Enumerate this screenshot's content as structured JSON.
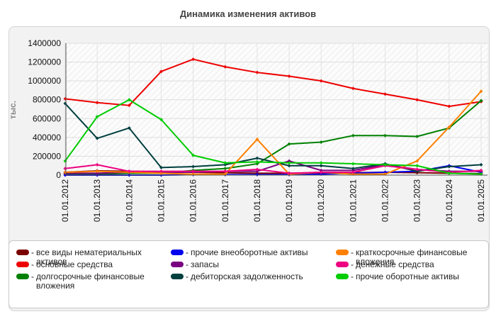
{
  "chart_data": {
    "type": "line",
    "title": "Динамика изменения активов",
    "ylabel": "тыс.",
    "xlabel": "",
    "ylim": [
      0,
      1400000
    ],
    "y_ticks": [
      "0",
      "200000",
      "400000",
      "600000",
      "800000",
      "1000000",
      "1200000",
      "1400000"
    ],
    "y_tick_values": [
      0,
      200000,
      400000,
      600000,
      800000,
      1000000,
      1200000,
      1400000
    ],
    "categories": [
      "01.01.2012",
      "01.01.2013",
      "01.01.2014",
      "01.01.2015",
      "01.01.2016",
      "01.01.2017",
      "01.01.2018",
      "01.01.2019",
      "01.01.2020",
      "01.01.2021",
      "01.01.2022",
      "01.01.2023",
      "01.01.2024",
      "01.01.2025"
    ],
    "grid": true,
    "legend_position": "bottom",
    "series": [
      {
        "name": "все виды нематериальных активов",
        "color": "#7a0000",
        "values": [
          30000,
          45000,
          40000,
          35000,
          30000,
          25000,
          20000,
          20000,
          20000,
          25000,
          30000,
          25000,
          20000,
          15000
        ]
      },
      {
        "name": "основные средства",
        "color": "#ee0000",
        "values": [
          810000,
          770000,
          740000,
          1100000,
          1230000,
          1150000,
          1090000,
          1050000,
          1000000,
          920000,
          860000,
          800000,
          730000,
          780000
        ]
      },
      {
        "name": "долгосрочные финансовые вложения",
        "color": "#008000",
        "values": [
          10000,
          10000,
          20000,
          20000,
          50000,
          70000,
          120000,
          330000,
          350000,
          420000,
          420000,
          410000,
          500000,
          790000
        ]
      },
      {
        "name": "прочие внеоборотные активы",
        "color": "#0000ee",
        "values": [
          0,
          0,
          0,
          0,
          5000,
          5000,
          5000,
          5000,
          10000,
          20000,
          30000,
          40000,
          100000,
          30000
        ]
      },
      {
        "name": "запасы",
        "color": "#7a0080",
        "values": [
          20000,
          20000,
          30000,
          30000,
          30000,
          40000,
          40000,
          150000,
          50000,
          50000,
          110000,
          60000,
          40000,
          40000
        ]
      },
      {
        "name": "дебиторская задолженность",
        "color": "#003f3f",
        "values": [
          760000,
          390000,
          500000,
          80000,
          90000,
          110000,
          180000,
          100000,
          100000,
          70000,
          120000,
          40000,
          90000,
          110000
        ]
      },
      {
        "name": "краткосрочные финансовые вложения",
        "color": "#ff8000",
        "values": [
          30000,
          40000,
          30000,
          20000,
          10000,
          10000,
          380000,
          10000,
          30000,
          10000,
          10000,
          150000,
          510000,
          890000
        ]
      },
      {
        "name": "денежные средства",
        "color": "#ee0080",
        "values": [
          70000,
          110000,
          40000,
          40000,
          40000,
          40000,
          60000,
          20000,
          30000,
          30000,
          100000,
          60000,
          30000,
          50000
        ]
      },
      {
        "name": "прочие оборотные активы",
        "color": "#00cc00",
        "values": [
          150000,
          620000,
          800000,
          590000,
          210000,
          130000,
          140000,
          130000,
          130000,
          120000,
          110000,
          100000,
          20000,
          10000
        ]
      }
    ]
  }
}
